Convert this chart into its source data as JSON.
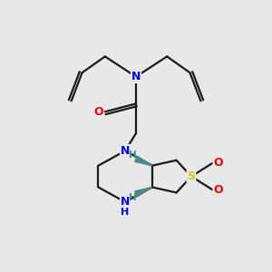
{
  "bg_color": "#e8e8e8",
  "bond_color": "#1a1a1a",
  "N_color": "#0000ee",
  "O_color": "#ee0000",
  "S_color": "#cccc00",
  "H_color": "#4a8a8a",
  "figsize": [
    3.0,
    3.0
  ],
  "dpi": 100,
  "xlim": [
    0,
    10
  ],
  "ylim": [
    0,
    10
  ],
  "lw": 1.6,
  "fs": 9.0
}
